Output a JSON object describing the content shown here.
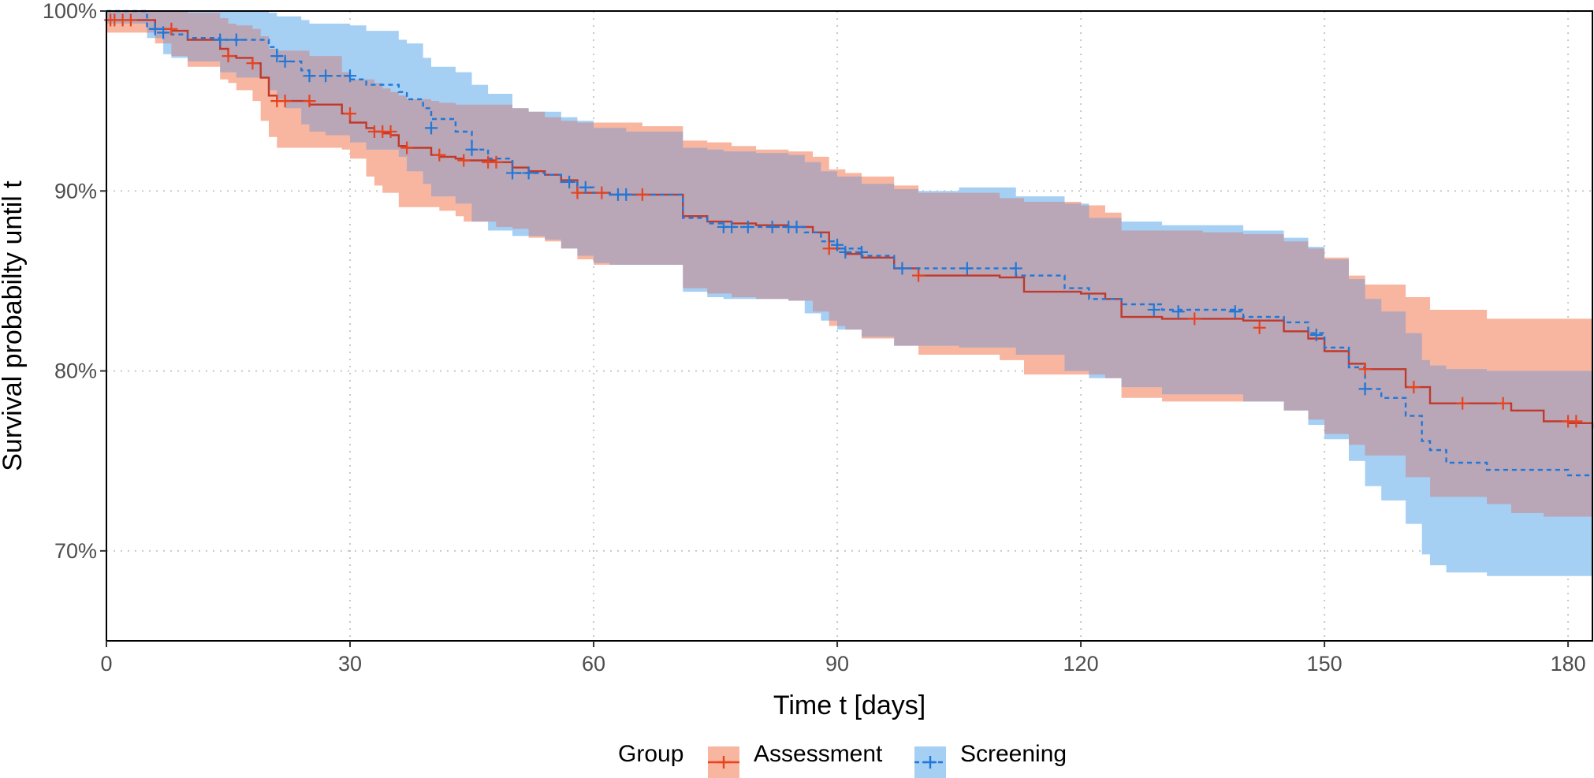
{
  "chart_data": {
    "type": "line",
    "subtype": "kaplan-meier survival curve with 95% confidence bands",
    "title": "",
    "xlabel": "Time t [days]",
    "ylabel": "Survival probabilty until t",
    "xlim": [
      0,
      183
    ],
    "ylim": [
      65,
      100
    ],
    "x_ticks": [
      0,
      30,
      60,
      90,
      120,
      150,
      180
    ],
    "x_tick_labels": [
      "0",
      "30",
      "60",
      "90",
      "120",
      "150",
      "180"
    ],
    "y_ticks": [
      70,
      80,
      90,
      100
    ],
    "y_tick_labels": [
      "70%",
      "80%",
      "90%",
      "100%"
    ],
    "grid": "dotted major gridlines",
    "legend": {
      "title": "Group",
      "position": "bottom",
      "entries": [
        "Assessment",
        "Screening"
      ]
    },
    "colors": {
      "Assessment": "#e8431d",
      "Assessment_band": "#f8b59f",
      "Screening": "#1f78d9",
      "Screening_band": "#a6cff4",
      "overlap": "#b9a6b6",
      "grid": "#c8c8c8"
    },
    "series": [
      {
        "name": "Assessment",
        "line_style": "solid",
        "x": [
          0,
          6,
          8,
          10,
          14,
          15,
          16,
          18,
          19,
          20,
          21,
          25,
          29,
          30,
          32,
          33,
          34,
          35,
          36,
          37,
          40,
          41,
          43,
          44,
          48,
          50,
          52,
          54,
          56,
          58,
          60,
          62,
          66,
          71,
          74,
          77,
          80,
          84,
          87,
          89,
          91,
          93,
          97,
          100,
          105,
          110,
          113,
          120,
          123,
          125,
          130,
          135,
          140,
          145,
          148,
          150,
          153,
          155,
          160,
          163,
          170,
          173,
          177,
          180,
          183
        ],
        "y": [
          99.5,
          99.0,
          98.9,
          98.4,
          97.9,
          97.5,
          97.4,
          97.1,
          96.3,
          95.3,
          95.0,
          94.8,
          94.3,
          93.8,
          93.5,
          93.3,
          93.2,
          93.1,
          92.5,
          92.4,
          92.0,
          91.9,
          91.8,
          91.7,
          91.6,
          91.3,
          91.1,
          90.9,
          90.6,
          89.9,
          89.9,
          89.8,
          89.8,
          88.6,
          88.3,
          88.2,
          88.1,
          88.0,
          87.7,
          86.8,
          86.5,
          86.3,
          85.7,
          85.3,
          85.3,
          85.2,
          84.4,
          84.3,
          84.0,
          83.0,
          82.9,
          82.9,
          82.8,
          82.2,
          81.8,
          81.1,
          80.4,
          80.1,
          79.1,
          78.2,
          78.2,
          77.8,
          77.2,
          77.1,
          76.8
        ],
        "ci_low": [
          98.8,
          98.2,
          97.5,
          96.9,
          96.2,
          96.0,
          95.6,
          95.0,
          93.9,
          93.0,
          92.4,
          92.4,
          92.3,
          91.8,
          90.8,
          90.3,
          89.9,
          89.9,
          89.1,
          89.1,
          89.1,
          88.9,
          88.6,
          88.3,
          88.0,
          87.9,
          87.4,
          87.2,
          86.8,
          86.2,
          85.9,
          85.9,
          85.9,
          84.6,
          84.3,
          84.1,
          84.0,
          83.9,
          83.3,
          82.5,
          82.3,
          81.8,
          81.4,
          80.9,
          80.9,
          80.6,
          79.8,
          79.8,
          79.6,
          78.5,
          78.3,
          78.3,
          78.3,
          77.8,
          77.3,
          76.5,
          75.9,
          75.3,
          74.1,
          73.0,
          72.6,
          72.1,
          71.9,
          71.9,
          71.9
        ],
        "ci_high": [
          100,
          100,
          100,
          99.9,
          99.6,
          99.3,
          99.2,
          99.0,
          98.6,
          97.9,
          97.8,
          97.5,
          96.6,
          96.2,
          96.2,
          96.0,
          95.7,
          95.5,
          95.3,
          95.1,
          95.0,
          94.9,
          94.8,
          94.8,
          94.8,
          94.6,
          94.4,
          94.1,
          93.9,
          93.8,
          93.8,
          93.8,
          93.6,
          92.8,
          92.7,
          92.5,
          92.3,
          92.2,
          91.9,
          91.2,
          91.0,
          90.8,
          90.3,
          89.9,
          89.9,
          89.6,
          89.4,
          89.2,
          88.8,
          87.8,
          87.8,
          87.7,
          87.6,
          87.2,
          86.8,
          86.3,
          85.3,
          84.8,
          84.1,
          83.4,
          82.9,
          82.9,
          82.9,
          82.9,
          82.9
        ],
        "censor_x": [
          0.5,
          1,
          2,
          3,
          8,
          15,
          18,
          21,
          22,
          25,
          30,
          33,
          34,
          35,
          37,
          41,
          44,
          47,
          48,
          58,
          61,
          66,
          89,
          100,
          134,
          142,
          155,
          161,
          167,
          172,
          180,
          181
        ],
        "censor_y": [
          99.5,
          99.5,
          99.5,
          99.5,
          99.0,
          97.5,
          97.1,
          95.0,
          95.0,
          95.0,
          94.3,
          93.3,
          93.3,
          93.3,
          92.4,
          92.0,
          91.7,
          91.6,
          91.6,
          89.9,
          89.9,
          89.8,
          86.8,
          85.3,
          82.9,
          82.4,
          80.1,
          79.1,
          78.2,
          78.2,
          77.2,
          77.2
        ]
      },
      {
        "name": "Screening",
        "line_style": "dashed",
        "x": [
          0,
          5,
          7,
          8,
          10,
          14,
          16,
          20,
          21,
          22,
          24,
          25,
          27,
          30,
          32,
          36,
          37,
          39,
          40,
          43,
          45,
          47,
          50,
          52,
          54,
          56,
          58,
          60,
          62,
          64,
          71,
          74,
          76,
          80,
          84,
          86,
          88,
          90,
          93,
          97,
          100,
          105,
          112,
          118,
          121,
          125,
          130,
          140,
          145,
          148,
          150,
          153,
          155,
          157,
          160,
          162,
          163,
          165,
          170,
          180,
          183
        ],
        "y": [
          100,
          99.0,
          98.8,
          98.7,
          98.5,
          98.4,
          98.4,
          98.0,
          97.5,
          97.2,
          96.7,
          96.4,
          96.4,
          96.2,
          95.9,
          95.5,
          95.1,
          94.6,
          94.0,
          93.3,
          92.3,
          91.8,
          91.0,
          91.0,
          90.9,
          90.5,
          90.2,
          89.9,
          89.8,
          89.8,
          88.5,
          88.2,
          88.0,
          88.0,
          88.0,
          87.7,
          87.2,
          86.8,
          86.4,
          85.7,
          85.7,
          85.7,
          85.3,
          84.6,
          84.0,
          83.7,
          83.4,
          83.0,
          82.7,
          82.1,
          81.3,
          80.2,
          79.0,
          78.5,
          77.5,
          76.1,
          75.6,
          74.9,
          74.5,
          74.2,
          74.2
        ],
        "ci_low": [
          99.3,
          98.5,
          97.6,
          97.4,
          97.2,
          96.6,
          96.3,
          95.6,
          95.1,
          94.6,
          93.7,
          93.3,
          93.1,
          92.7,
          92.3,
          91.9,
          91.1,
          90.4,
          89.7,
          89.3,
          88.3,
          87.8,
          87.5,
          87.5,
          87.3,
          86.8,
          86.4,
          86.0,
          85.9,
          85.9,
          84.4,
          84.1,
          84.0,
          84.0,
          83.9,
          83.2,
          82.8,
          82.3,
          81.9,
          81.4,
          81.4,
          81.3,
          80.9,
          80.0,
          79.6,
          79.1,
          78.7,
          78.3,
          77.8,
          77.0,
          76.2,
          75.0,
          73.6,
          72.8,
          71.5,
          69.8,
          69.2,
          68.8,
          68.6,
          68.6,
          68.6
        ],
        "ci_high": [
          100,
          100,
          100,
          100,
          100,
          100,
          100,
          99.9,
          99.7,
          99.7,
          99.5,
          99.3,
          99.3,
          99.2,
          98.9,
          98.4,
          98.2,
          97.4,
          96.9,
          96.6,
          95.9,
          95.4,
          94.6,
          94.4,
          94.4,
          94.1,
          93.9,
          93.5,
          93.5,
          93.3,
          92.4,
          92.3,
          92.2,
          92.1,
          92.0,
          91.6,
          91.1,
          90.8,
          90.4,
          90.1,
          90.0,
          90.2,
          89.7,
          89.3,
          88.5,
          88.3,
          88.1,
          87.8,
          87.4,
          86.9,
          86.2,
          85.1,
          84.0,
          83.3,
          82.1,
          80.6,
          80.3,
          80.1,
          80.0,
          80.0,
          80.0
        ],
        "censor_x": [
          6,
          7,
          14,
          16,
          21,
          22,
          25,
          27,
          30,
          40,
          45,
          50,
          52,
          57,
          59,
          63,
          64,
          76,
          77,
          79,
          82,
          84,
          85,
          90,
          91,
          93,
          98,
          106,
          112,
          129,
          132,
          139,
          149,
          155
        ],
        "censor_y": [
          99.0,
          98.8,
          98.4,
          98.4,
          97.5,
          97.2,
          96.4,
          96.4,
          96.4,
          93.5,
          92.3,
          91.0,
          91.0,
          90.5,
          90.2,
          89.8,
          89.8,
          88.0,
          88.0,
          88.0,
          88.0,
          88.0,
          88.0,
          87.0,
          86.6,
          86.6,
          85.7,
          85.7,
          85.7,
          83.4,
          83.3,
          83.3,
          82.0,
          79.0
        ]
      }
    ]
  }
}
